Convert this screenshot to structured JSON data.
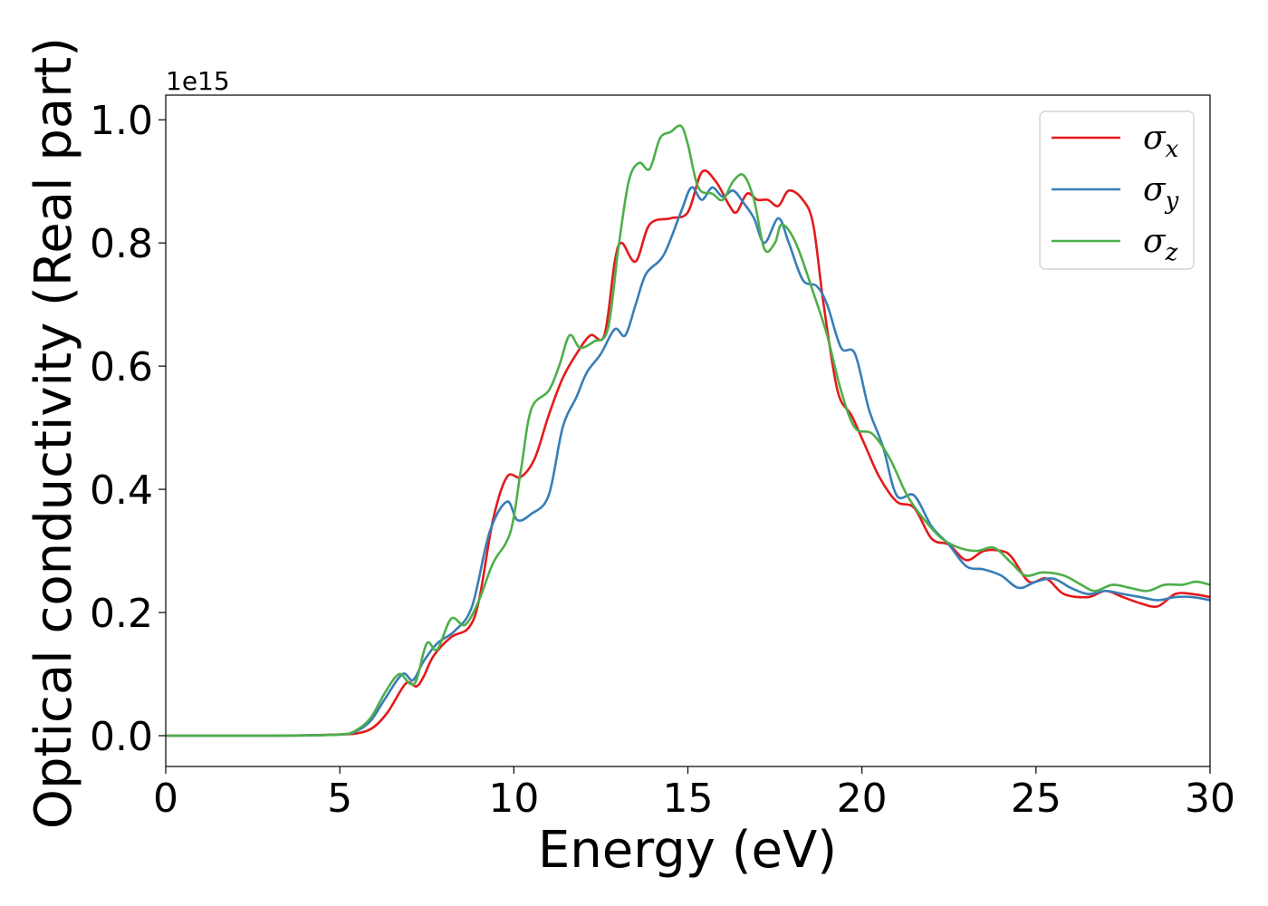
{
  "chart_data": {
    "type": "line",
    "xlabel": "Energy (eV)",
    "ylabel": "Optical conductivity (Real part)",
    "y_offset_label": "1e15",
    "xlim": [
      0,
      30
    ],
    "ylim": [
      -0.05,
      1.04
    ],
    "x_ticks": [
      0,
      5,
      10,
      15,
      20,
      25,
      30
    ],
    "x_tick_labels": [
      "0",
      "5",
      "10",
      "15",
      "20",
      "25",
      "30"
    ],
    "y_ticks": [
      0.0,
      0.2,
      0.4,
      0.6,
      0.8,
      1.0
    ],
    "y_tick_labels": [
      "0.0",
      "0.2",
      "0.4",
      "0.6",
      "0.8",
      "1.0"
    ],
    "grid": false,
    "legend_position": "top-right",
    "series": [
      {
        "name": "σ",
        "subscript": "x",
        "color": "#e41a1c",
        "points": [
          [
            0,
            0
          ],
          [
            3,
            0.0
          ],
          [
            5,
            0.002
          ],
          [
            5.6,
            0.005
          ],
          [
            6,
            0.015
          ],
          [
            6.4,
            0.04
          ],
          [
            6.9,
            0.085
          ],
          [
            7.2,
            0.08
          ],
          [
            7.4,
            0.095
          ],
          [
            7.7,
            0.13
          ],
          [
            8.2,
            0.16
          ],
          [
            8.7,
            0.175
          ],
          [
            9.0,
            0.22
          ],
          [
            9.4,
            0.35
          ],
          [
            9.8,
            0.42
          ],
          [
            10.2,
            0.42
          ],
          [
            10.6,
            0.45
          ],
          [
            11.0,
            0.52
          ],
          [
            11.4,
            0.58
          ],
          [
            11.8,
            0.62
          ],
          [
            12.2,
            0.65
          ],
          [
            12.6,
            0.65
          ],
          [
            12.9,
            0.77
          ],
          [
            13.1,
            0.8
          ],
          [
            13.5,
            0.77
          ],
          [
            13.9,
            0.83
          ],
          [
            14.5,
            0.84
          ],
          [
            15.0,
            0.85
          ],
          [
            15.4,
            0.915
          ],
          [
            15.8,
            0.9
          ],
          [
            16.2,
            0.86
          ],
          [
            16.4,
            0.85
          ],
          [
            16.7,
            0.88
          ],
          [
            17.0,
            0.87
          ],
          [
            17.3,
            0.87
          ],
          [
            17.6,
            0.86
          ],
          [
            17.9,
            0.885
          ],
          [
            18.3,
            0.87
          ],
          [
            18.6,
            0.83
          ],
          [
            18.9,
            0.7
          ],
          [
            19.3,
            0.56
          ],
          [
            19.7,
            0.52
          ],
          [
            20.1,
            0.47
          ],
          [
            20.5,
            0.42
          ],
          [
            21.0,
            0.38
          ],
          [
            21.5,
            0.37
          ],
          [
            22.0,
            0.32
          ],
          [
            22.5,
            0.31
          ],
          [
            23.0,
            0.285
          ],
          [
            23.5,
            0.3
          ],
          [
            24.0,
            0.3
          ],
          [
            24.3,
            0.29
          ],
          [
            24.8,
            0.25
          ],
          [
            25.3,
            0.255
          ],
          [
            25.8,
            0.23
          ],
          [
            26.5,
            0.225
          ],
          [
            27.0,
            0.235
          ],
          [
            27.5,
            0.225
          ],
          [
            28.0,
            0.215
          ],
          [
            28.5,
            0.21
          ],
          [
            29.0,
            0.23
          ],
          [
            29.5,
            0.23
          ],
          [
            30.0,
            0.225
          ]
        ]
      },
      {
        "name": "σ",
        "subscript": "y",
        "color": "#377eb8",
        "points": [
          [
            0,
            0
          ],
          [
            3,
            0.0
          ],
          [
            5,
            0.002
          ],
          [
            5.5,
            0.008
          ],
          [
            5.9,
            0.025
          ],
          [
            6.3,
            0.06
          ],
          [
            6.8,
            0.1
          ],
          [
            7.1,
            0.09
          ],
          [
            7.4,
            0.12
          ],
          [
            7.8,
            0.15
          ],
          [
            8.3,
            0.17
          ],
          [
            8.8,
            0.21
          ],
          [
            9.3,
            0.33
          ],
          [
            9.8,
            0.38
          ],
          [
            10.1,
            0.35
          ],
          [
            10.5,
            0.36
          ],
          [
            11.0,
            0.39
          ],
          [
            11.4,
            0.5
          ],
          [
            11.8,
            0.55
          ],
          [
            12.1,
            0.59
          ],
          [
            12.5,
            0.62
          ],
          [
            12.9,
            0.66
          ],
          [
            13.2,
            0.65
          ],
          [
            13.5,
            0.7
          ],
          [
            13.8,
            0.75
          ],
          [
            14.3,
            0.78
          ],
          [
            14.8,
            0.85
          ],
          [
            15.1,
            0.89
          ],
          [
            15.4,
            0.87
          ],
          [
            15.7,
            0.89
          ],
          [
            16.0,
            0.875
          ],
          [
            16.3,
            0.885
          ],
          [
            16.6,
            0.865
          ],
          [
            16.9,
            0.84
          ],
          [
            17.2,
            0.8
          ],
          [
            17.6,
            0.84
          ],
          [
            17.9,
            0.8
          ],
          [
            18.3,
            0.74
          ],
          [
            18.7,
            0.73
          ],
          [
            19.0,
            0.7
          ],
          [
            19.4,
            0.63
          ],
          [
            19.8,
            0.62
          ],
          [
            20.2,
            0.53
          ],
          [
            20.6,
            0.47
          ],
          [
            21.0,
            0.39
          ],
          [
            21.5,
            0.39
          ],
          [
            22.0,
            0.34
          ],
          [
            22.5,
            0.31
          ],
          [
            23.0,
            0.275
          ],
          [
            23.5,
            0.27
          ],
          [
            24.0,
            0.26
          ],
          [
            24.5,
            0.24
          ],
          [
            25.0,
            0.25
          ],
          [
            25.5,
            0.255
          ],
          [
            26.0,
            0.24
          ],
          [
            26.5,
            0.23
          ],
          [
            27.0,
            0.235
          ],
          [
            27.5,
            0.23
          ],
          [
            28.0,
            0.225
          ],
          [
            28.5,
            0.22
          ],
          [
            29.0,
            0.225
          ],
          [
            29.5,
            0.225
          ],
          [
            30.0,
            0.22
          ]
        ]
      },
      {
        "name": "σ",
        "subscript": "z",
        "color": "#4daf4a",
        "points": [
          [
            0,
            0
          ],
          [
            3,
            0.0
          ],
          [
            5,
            0.002
          ],
          [
            5.5,
            0.01
          ],
          [
            5.9,
            0.03
          ],
          [
            6.3,
            0.07
          ],
          [
            6.7,
            0.1
          ],
          [
            7.0,
            0.085
          ],
          [
            7.2,
            0.09
          ],
          [
            7.5,
            0.15
          ],
          [
            7.8,
            0.14
          ],
          [
            8.2,
            0.19
          ],
          [
            8.6,
            0.18
          ],
          [
            9.0,
            0.22
          ],
          [
            9.4,
            0.28
          ],
          [
            9.9,
            0.33
          ],
          [
            10.2,
            0.43
          ],
          [
            10.5,
            0.53
          ],
          [
            11.0,
            0.56
          ],
          [
            11.3,
            0.6
          ],
          [
            11.6,
            0.65
          ],
          [
            11.9,
            0.63
          ],
          [
            12.3,
            0.64
          ],
          [
            12.7,
            0.66
          ],
          [
            13.0,
            0.79
          ],
          [
            13.3,
            0.9
          ],
          [
            13.6,
            0.93
          ],
          [
            13.9,
            0.92
          ],
          [
            14.2,
            0.97
          ],
          [
            14.5,
            0.98
          ],
          [
            14.8,
            0.99
          ],
          [
            15.0,
            0.96
          ],
          [
            15.3,
            0.89
          ],
          [
            15.7,
            0.88
          ],
          [
            16.0,
            0.87
          ],
          [
            16.3,
            0.9
          ],
          [
            16.6,
            0.91
          ],
          [
            16.9,
            0.87
          ],
          [
            17.2,
            0.79
          ],
          [
            17.5,
            0.8
          ],
          [
            17.7,
            0.83
          ],
          [
            18.1,
            0.8
          ],
          [
            18.6,
            0.72
          ],
          [
            19.0,
            0.65
          ],
          [
            19.4,
            0.56
          ],
          [
            19.8,
            0.5
          ],
          [
            20.3,
            0.49
          ],
          [
            20.8,
            0.45
          ],
          [
            21.3,
            0.39
          ],
          [
            21.8,
            0.35
          ],
          [
            22.3,
            0.32
          ],
          [
            22.8,
            0.305
          ],
          [
            23.3,
            0.3
          ],
          [
            23.8,
            0.305
          ],
          [
            24.3,
            0.28
          ],
          [
            24.7,
            0.26
          ],
          [
            25.2,
            0.265
          ],
          [
            25.8,
            0.26
          ],
          [
            26.3,
            0.245
          ],
          [
            26.7,
            0.235
          ],
          [
            27.2,
            0.245
          ],
          [
            27.7,
            0.24
          ],
          [
            28.2,
            0.235
          ],
          [
            28.7,
            0.245
          ],
          [
            29.2,
            0.245
          ],
          [
            29.6,
            0.25
          ],
          [
            30.0,
            0.245
          ]
        ]
      }
    ]
  }
}
